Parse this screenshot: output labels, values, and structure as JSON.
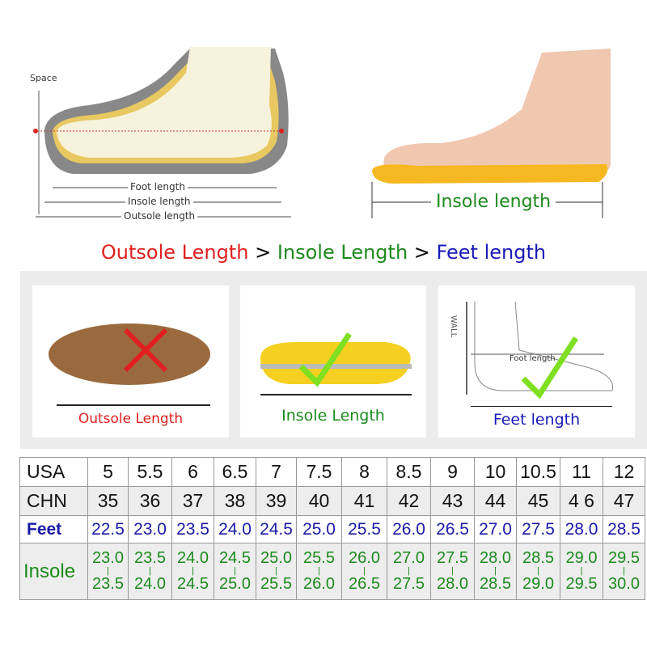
{
  "diagram": {
    "space": "Space",
    "foot_length": "Foot length",
    "insole_length": "Insole length",
    "outsole_length": "Outsole length"
  },
  "photo": {
    "insole_length": "Insole length"
  },
  "headline": {
    "outsole": "Outsole Length",
    "gt1": " > ",
    "insole": "Insole Length",
    "gt2": " > ",
    "feet": "Feet length"
  },
  "colors": {
    "outsole": "#e02020",
    "insole": "#1c8a1c",
    "feet": "#1a1ab8"
  },
  "panels": [
    {
      "label": "Outsole Length",
      "mark": "cross-icon"
    },
    {
      "label": "Insole Length",
      "mark": "check-icon"
    },
    {
      "label": "Feet length",
      "mark": "check-icon",
      "wall": "WALL",
      "foot_length": "Foot length"
    }
  ],
  "table": {
    "usa": {
      "label": "USA",
      "values": [
        "5",
        "5.5",
        "6",
        "6.5",
        "7",
        "7.5",
        "8",
        "8.5",
        "9",
        "10",
        "10.5",
        "11",
        "12"
      ]
    },
    "chn": {
      "label": "CHN",
      "values": [
        "35",
        "36",
        "37",
        "38",
        "39",
        "40",
        "41",
        "42",
        "43",
        "44",
        "45",
        "4 6",
        "47"
      ]
    },
    "feet": {
      "label": "Feet",
      "values": [
        "22.5",
        "23.0",
        "23.5",
        "24.0",
        "24.5",
        "25.0",
        "25.5",
        "26.0",
        "26.5",
        "27.0",
        "27.5",
        "28.0",
        "28.5"
      ]
    },
    "insole": {
      "label": "Insole",
      "from": [
        "23.0",
        "23.5",
        "24.0",
        "24.5",
        "25.0",
        "25.5",
        "26.0",
        "27.0",
        "27.5",
        "28.0",
        "28.5",
        "29.0",
        "29.5"
      ],
      "to": [
        "23.5",
        "24.0",
        "24.5",
        "25.0",
        "25.5",
        "26.0",
        "26.5",
        "27.5",
        "28.0",
        "28.5",
        "29.0",
        "29.5",
        "30.0"
      ]
    }
  }
}
